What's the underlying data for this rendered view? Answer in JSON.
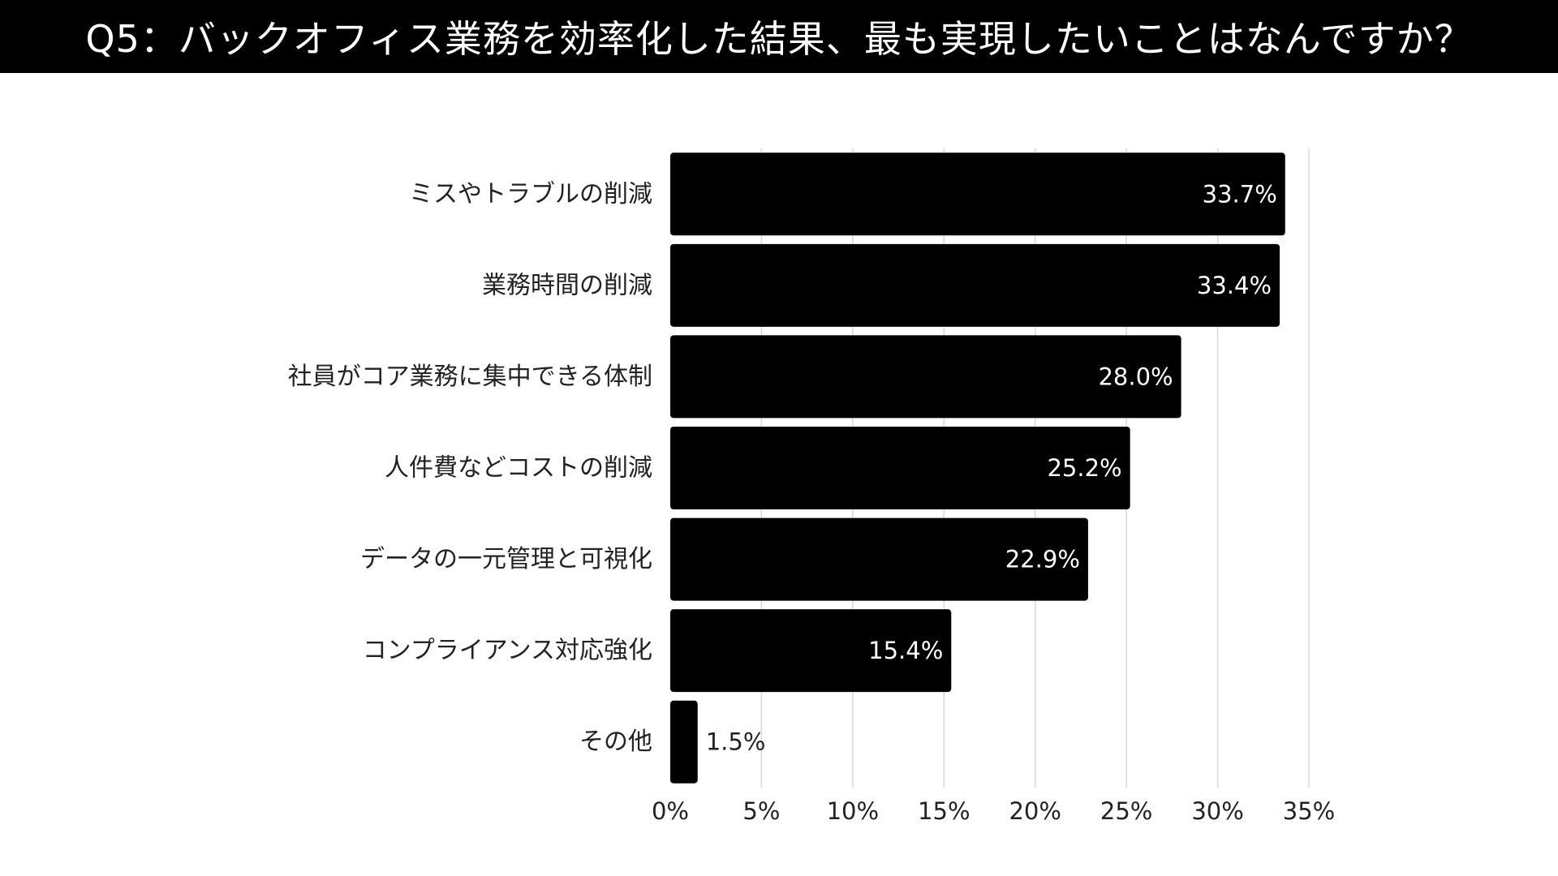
{
  "title": "Q5：バックオフィス業務を効率化した結果、最も実現したいことはなんですか？",
  "colors": {
    "bar": "#000000",
    "title_bg": "#000000",
    "title_text": "#ffffff",
    "grid": "#d9d9d9"
  },
  "chart_data": {
    "type": "bar",
    "orientation": "horizontal",
    "categories": [
      "ミスやトラブルの削減",
      "業務時間の削減",
      "社員がコア業務に集中できる体制",
      "人件費などコストの削減",
      "データの一元管理と可視化",
      "コンプライアンス対応強化",
      "その他"
    ],
    "values": [
      33.7,
      33.4,
      28.0,
      25.2,
      22.9,
      15.4,
      1.5
    ],
    "value_labels": [
      "33.7%",
      "33.4%",
      "28.0%",
      "25.2%",
      "22.9%",
      "15.4%",
      "1.5%"
    ],
    "xlim": [
      0,
      35
    ],
    "xticks": [
      0,
      5,
      10,
      15,
      20,
      25,
      30,
      35
    ],
    "xtick_labels": [
      "0%",
      "5%",
      "10%",
      "15%",
      "20%",
      "25%",
      "30%",
      "35%"
    ],
    "grid": true,
    "legend": "none"
  }
}
